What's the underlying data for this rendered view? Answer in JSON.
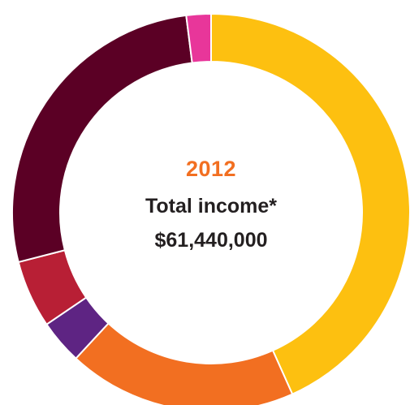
{
  "chart_data": {
    "type": "pie",
    "title": "2012",
    "subtitle": "Total income*",
    "total_label": "$61,440,000",
    "slices": [
      {
        "value": 43.3,
        "color": "#fdc010"
      },
      {
        "value": 18.6,
        "color": "#f26f21"
      },
      {
        "value": 3.6,
        "color": "#5e2483"
      },
      {
        "value": 5.5,
        "color": "#b81f35"
      },
      {
        "value": 27.0,
        "color": "#5b0025"
      },
      {
        "value": 2.0,
        "color": "#e8369a"
      }
    ]
  }
}
